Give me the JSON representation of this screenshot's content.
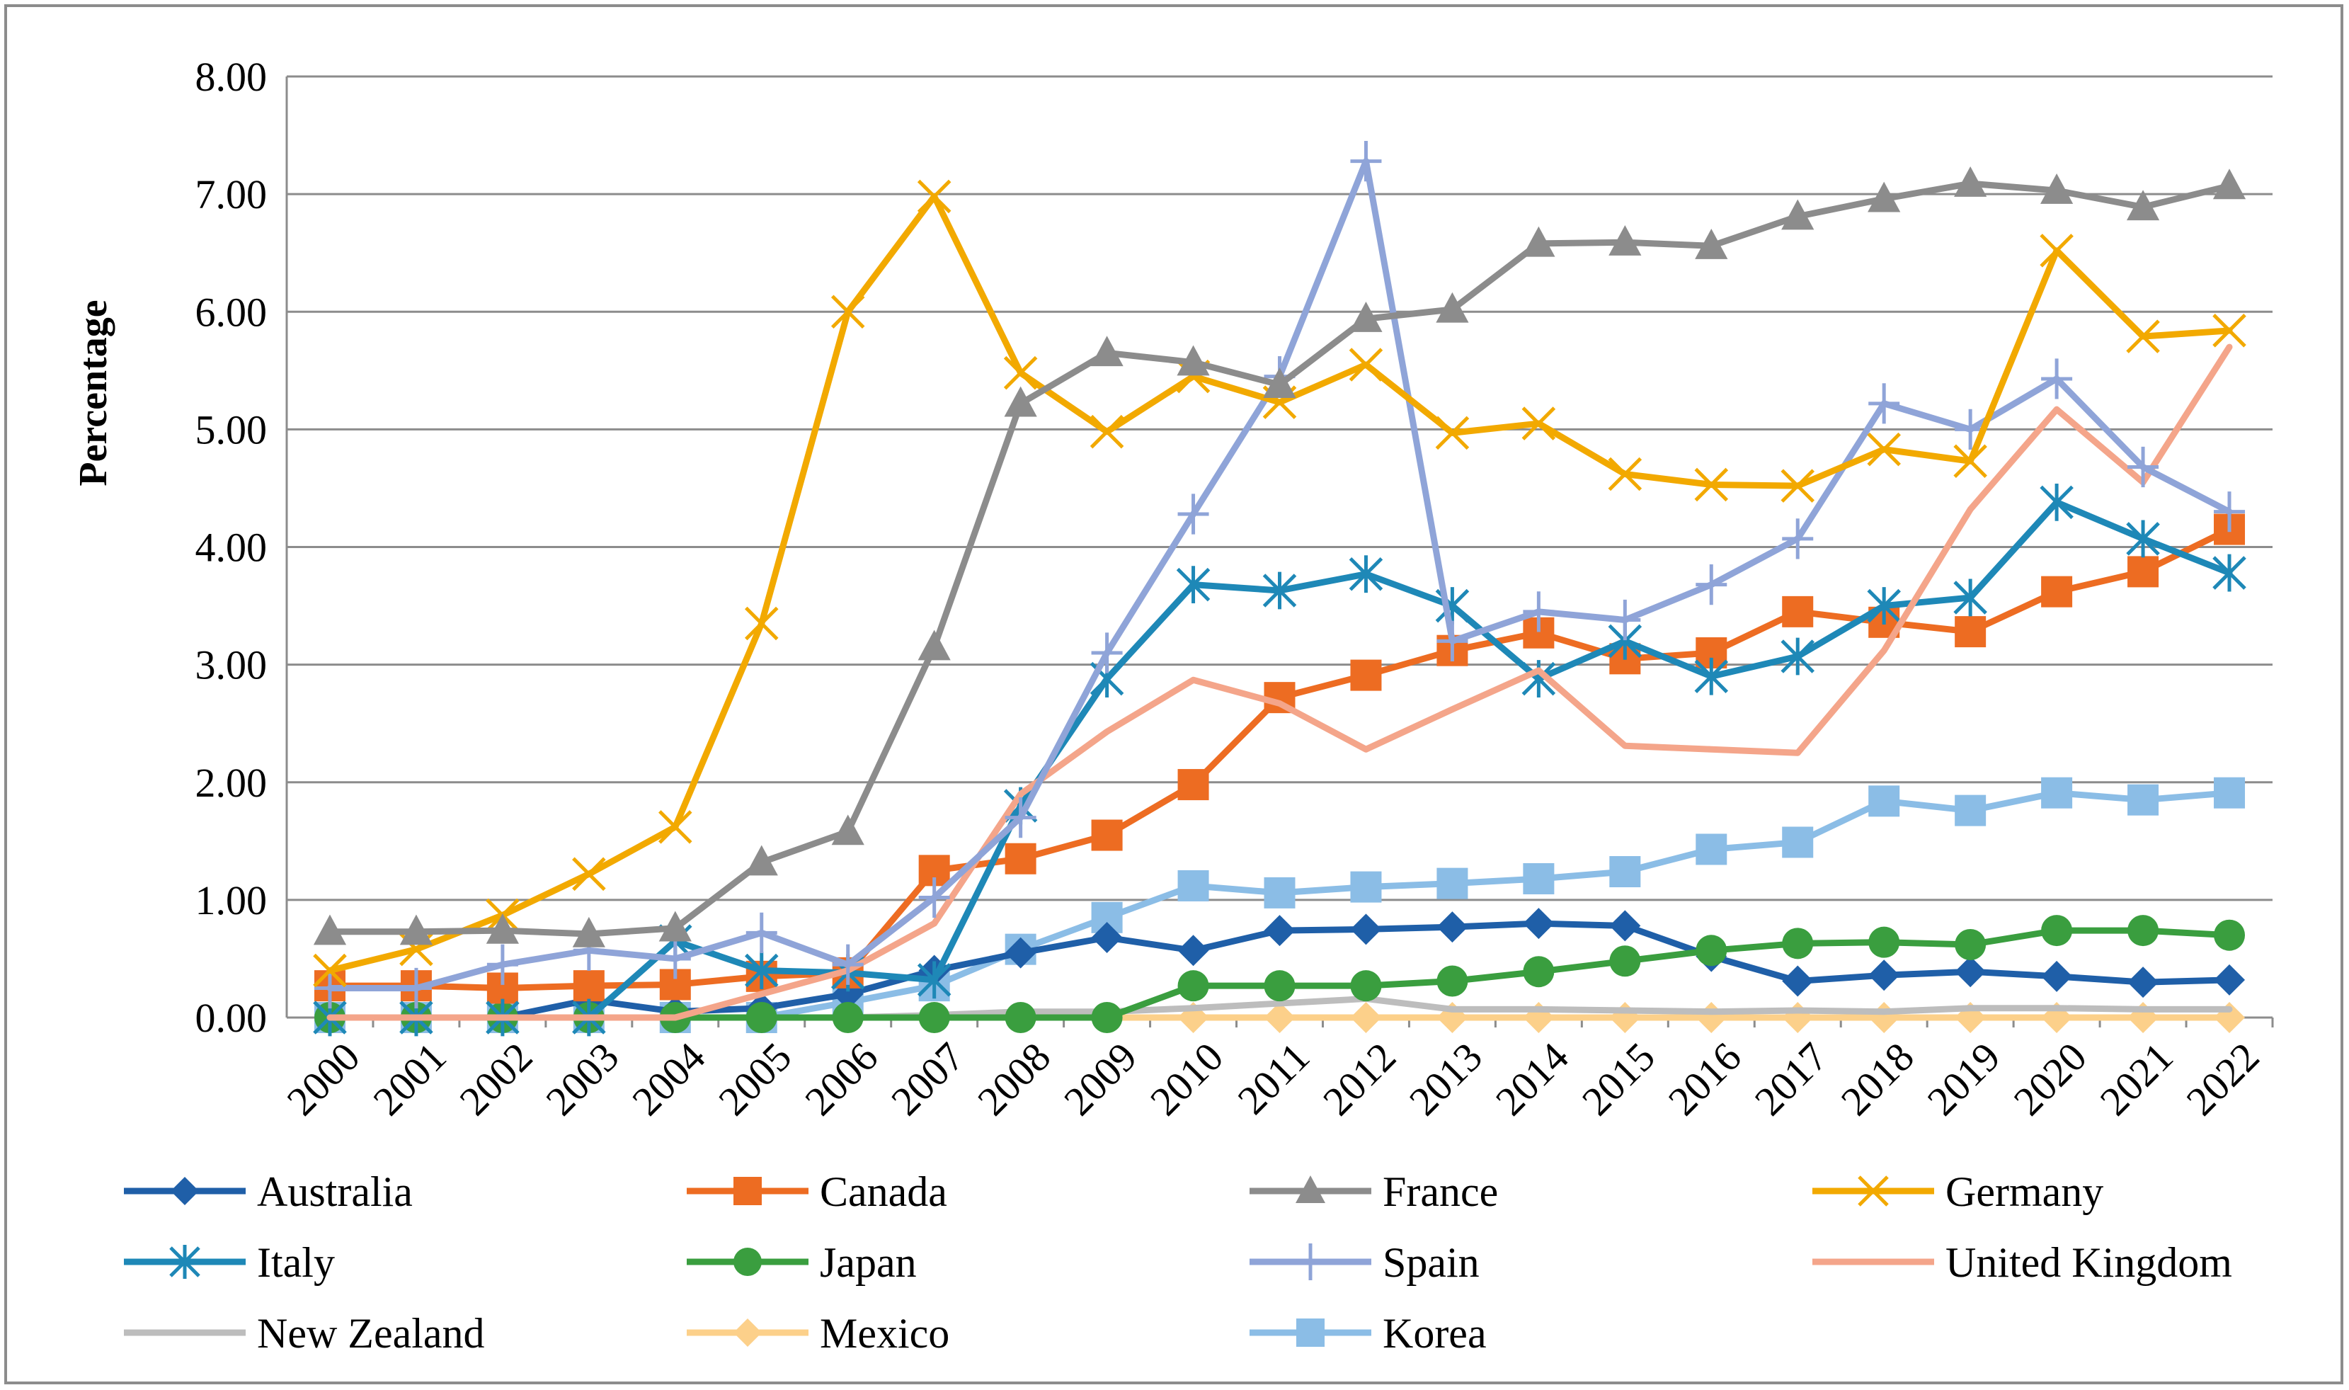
{
  "chart_data": {
    "type": "line",
    "title": "",
    "xlabel": "",
    "ylabel": "Percentage",
    "ylim": [
      0,
      8
    ],
    "yticks": [
      "0.00",
      "1.00",
      "2.00",
      "3.00",
      "4.00",
      "5.00",
      "6.00",
      "7.00",
      "8.00"
    ],
    "grid": true,
    "legend_position": "bottom",
    "x": [
      "2000",
      "2001",
      "2002",
      "2003",
      "2004",
      "2005",
      "2006",
      "2007",
      "2008",
      "2009",
      "2010",
      "2011",
      "2012",
      "2013",
      "2014",
      "2015",
      "2016",
      "2017",
      "2018",
      "2019",
      "2020",
      "2021",
      "2022"
    ],
    "series": [
      {
        "name": "Australia",
        "color": "#1f5fa8",
        "marker": "diamond",
        "values": [
          0.0,
          0.0,
          0.0,
          0.15,
          0.05,
          0.08,
          0.2,
          0.4,
          0.55,
          0.68,
          0.57,
          0.74,
          0.75,
          0.77,
          0.8,
          0.78,
          0.52,
          0.31,
          0.36,
          0.39,
          0.35,
          0.3,
          0.32
        ]
      },
      {
        "name": "Canada",
        "color": "#ed6c22",
        "marker": "square",
        "values": [
          0.27,
          0.27,
          0.25,
          0.27,
          0.28,
          0.35,
          0.38,
          1.25,
          1.35,
          1.55,
          1.98,
          2.72,
          2.91,
          3.12,
          3.27,
          3.05,
          3.1,
          3.45,
          3.36,
          3.28,
          3.62,
          3.79,
          4.15
        ]
      },
      {
        "name": "France",
        "color": "#8c8c8c",
        "marker": "triangle",
        "values": [
          0.73,
          0.73,
          0.74,
          0.71,
          0.76,
          1.32,
          1.58,
          3.15,
          5.22,
          5.65,
          5.57,
          5.38,
          5.94,
          6.02,
          6.58,
          6.59,
          6.56,
          6.81,
          6.96,
          7.09,
          7.03,
          6.89,
          7.07
        ]
      },
      {
        "name": "Germany",
        "color": "#f2a900",
        "marker": "x",
        "values": [
          0.4,
          0.58,
          0.87,
          1.22,
          1.62,
          3.35,
          6.0,
          6.98,
          5.48,
          4.98,
          5.45,
          5.23,
          5.55,
          4.97,
          5.05,
          4.62,
          4.53,
          4.52,
          4.83,
          4.73,
          6.52,
          5.79,
          5.84
        ]
      },
      {
        "name": "Italy",
        "color": "#1e88b7",
        "marker": "asterisk",
        "values": [
          0.0,
          0.0,
          0.0,
          0.0,
          0.65,
          0.4,
          0.38,
          0.32,
          1.8,
          2.88,
          3.68,
          3.63,
          3.77,
          3.5,
          2.88,
          3.2,
          2.9,
          3.07,
          3.5,
          3.57,
          4.38,
          4.07,
          3.78
        ]
      },
      {
        "name": "Japan",
        "color": "#3a9e3f",
        "marker": "circle",
        "values": [
          0.0,
          0.0,
          0.0,
          0.0,
          0.0,
          0.0,
          0.0,
          0.0,
          0.0,
          0.0,
          0.27,
          0.27,
          0.27,
          0.31,
          0.39,
          0.48,
          0.57,
          0.63,
          0.64,
          0.62,
          0.74,
          0.74,
          0.7
        ]
      },
      {
        "name": "Spain",
        "color": "#8fa4d8",
        "marker": "plus",
        "values": [
          0.25,
          0.25,
          0.45,
          0.57,
          0.5,
          0.72,
          0.45,
          1.02,
          1.7,
          3.1,
          4.28,
          5.45,
          7.28,
          3.2,
          3.45,
          3.38,
          3.68,
          4.07,
          5.22,
          5.0,
          5.43,
          4.68,
          4.3
        ]
      },
      {
        "name": "United Kingdom",
        "color": "#f4a58a",
        "marker": "none",
        "values": [
          0.0,
          0.0,
          0.0,
          0.0,
          0.0,
          0.2,
          0.4,
          0.8,
          1.9,
          2.43,
          2.87,
          2.67,
          2.28,
          2.62,
          2.95,
          2.31,
          2.28,
          2.25,
          3.12,
          4.32,
          5.17,
          4.55,
          5.7
        ]
      },
      {
        "name": "New Zealand",
        "color": "#bdbdbd",
        "marker": "none",
        "values": [
          0.0,
          0.0,
          0.0,
          0.0,
          0.0,
          0.0,
          0.0,
          0.02,
          0.05,
          0.05,
          0.08,
          0.12,
          0.16,
          0.07,
          0.07,
          0.06,
          0.05,
          0.06,
          0.05,
          0.08,
          0.08,
          0.07,
          0.07
        ]
      },
      {
        "name": "Mexico",
        "color": "#fcd08a",
        "marker": "diamond",
        "values": [
          0.0,
          0.0,
          0.0,
          0.0,
          0.0,
          0.0,
          0.0,
          0.0,
          0.0,
          0.0,
          0.0,
          0.0,
          0.0,
          0.0,
          0.0,
          0.0,
          0.0,
          0.0,
          0.0,
          0.0,
          0.0,
          0.0,
          0.0
        ]
      },
      {
        "name": "Korea",
        "color": "#8bbde6",
        "marker": "square",
        "values": [
          0.0,
          0.0,
          0.0,
          0.0,
          0.0,
          0.0,
          0.13,
          0.27,
          0.58,
          0.85,
          1.12,
          1.06,
          1.11,
          1.14,
          1.18,
          1.24,
          1.43,
          1.49,
          1.84,
          1.76,
          1.91,
          1.85,
          1.91
        ]
      }
    ]
  }
}
